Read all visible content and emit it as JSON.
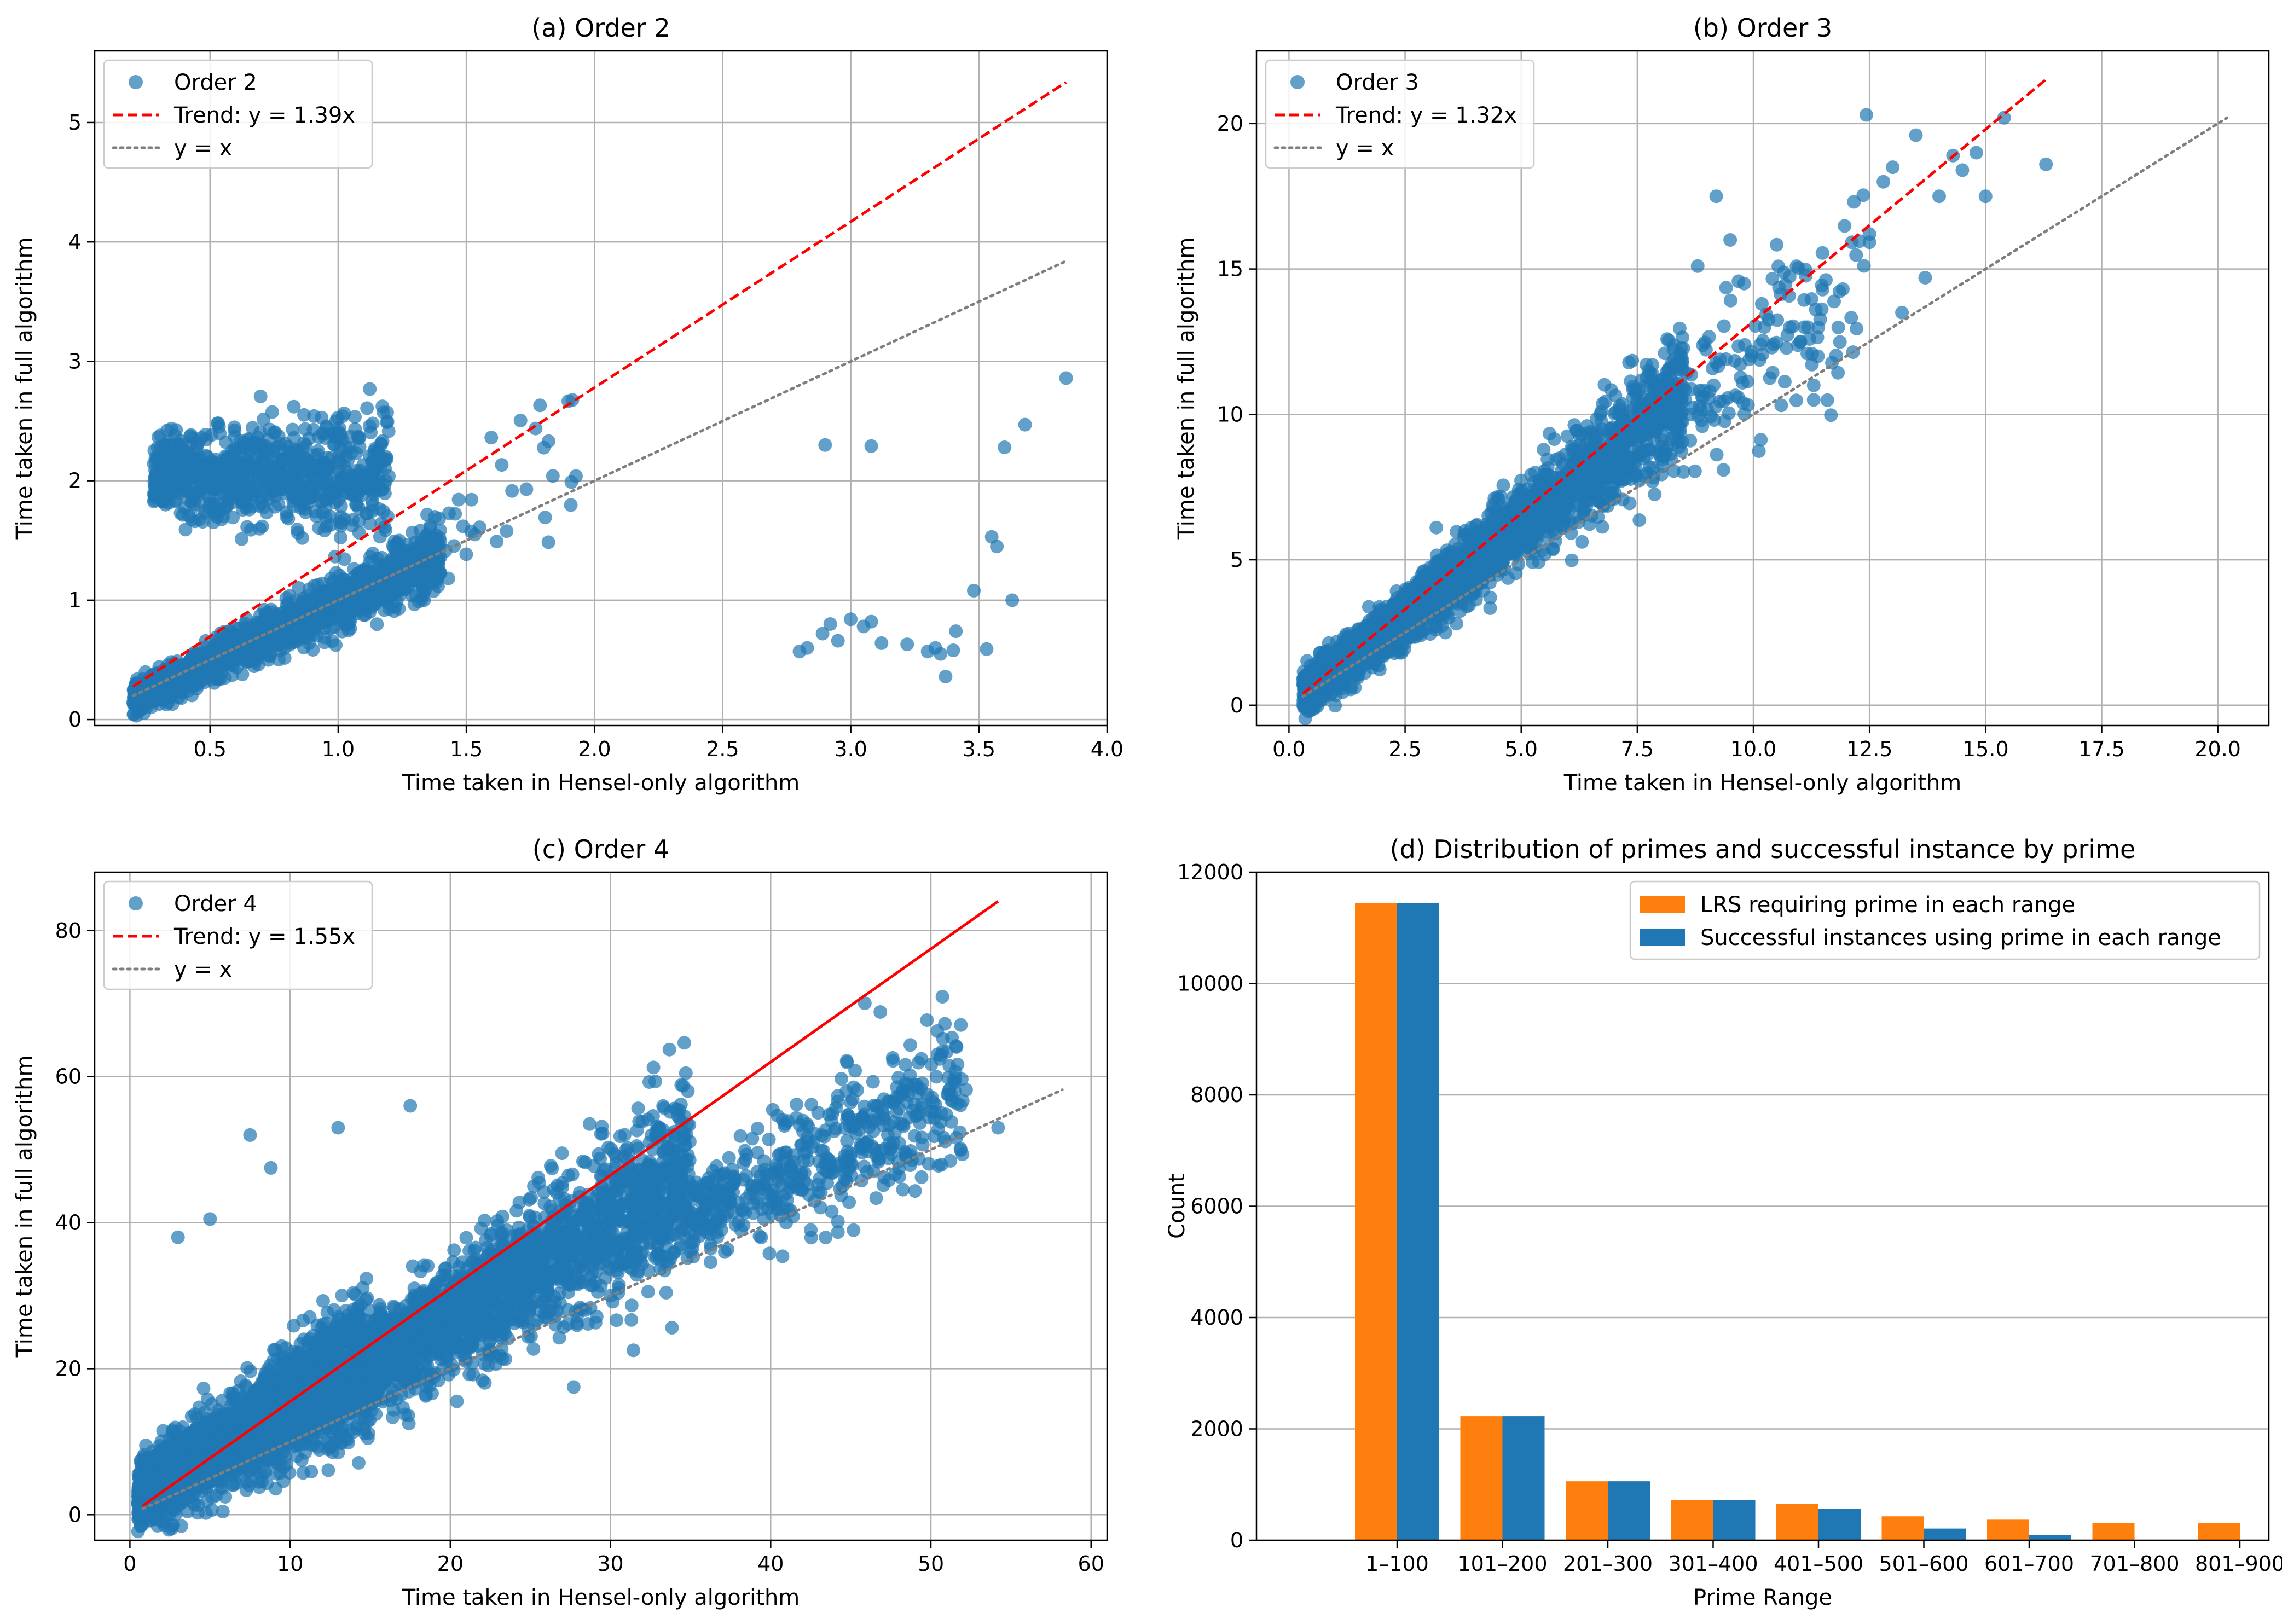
{
  "colors": {
    "blue": "#1f77b4",
    "orange": "#ff7f0e",
    "red": "#ff0000",
    "gray": "#7f7f7f",
    "grid": "#b0b0b0"
  },
  "chart_data": [
    {
      "id": "a",
      "type": "scatter",
      "title": "(a) Order 2",
      "xlabel": "Time taken in Hensel-only algorithm",
      "ylabel": "Time taken in full algorithm",
      "xlim": [
        0.05,
        4.0
      ],
      "ylim": [
        -0.05,
        5.6
      ],
      "xticks": [
        0.5,
        1.0,
        1.5,
        2.0,
        2.5,
        3.0,
        3.5,
        4.0
      ],
      "xticklabels": [
        "0.5",
        "1.0",
        "1.5",
        "2.0",
        "2.5",
        "3.0",
        "3.5",
        "4.0"
      ],
      "yticks": [
        0,
        1,
        2,
        3,
        4,
        5
      ],
      "yticklabels": [
        "0",
        "1",
        "2",
        "3",
        "4",
        "5"
      ],
      "grid": true,
      "legend": {
        "position": "top-left",
        "entries": [
          {
            "label": "Order 2",
            "style": "marker"
          },
          {
            "label": "Trend: y = 1.39x",
            "style": "dashed"
          },
          {
            "label": "y = x",
            "style": "dotted"
          }
        ]
      },
      "trend": {
        "slope": 1.39,
        "x_range": [
          0.2,
          3.84
        ],
        "style": "dashed"
      },
      "identity": {
        "x_range": [
          0.2,
          3.84
        ]
      },
      "clusters": [
        {
          "n": 1300,
          "x_range": [
            0.2,
            1.4
          ],
          "slope": 1.0,
          "offset": -0.02,
          "spread": 0.12
        },
        {
          "n": 800,
          "x_range": [
            0.28,
            1.2
          ],
          "slope": 0.0,
          "offset": 2.05,
          "spread": 0.24
        },
        {
          "n": 40,
          "x_range": [
            1.2,
            1.95
          ],
          "slope": 1.12,
          "offset": 0.0,
          "spread": 0.25
        }
      ],
      "points": [
        [
          2.8,
          0.57
        ],
        [
          2.83,
          0.6
        ],
        [
          2.89,
          0.72
        ],
        [
          2.92,
          0.8
        ],
        [
          2.95,
          0.66
        ],
        [
          3.0,
          0.84
        ],
        [
          3.05,
          0.78
        ],
        [
          3.08,
          0.82
        ],
        [
          3.12,
          0.64
        ],
        [
          3.22,
          0.63
        ],
        [
          3.3,
          0.57
        ],
        [
          3.33,
          0.6
        ],
        [
          3.35,
          0.55
        ],
        [
          3.37,
          0.36
        ],
        [
          3.4,
          0.58
        ],
        [
          3.41,
          0.74
        ],
        [
          3.48,
          1.08
        ],
        [
          3.53,
          0.59
        ],
        [
          3.55,
          1.53
        ],
        [
          3.57,
          1.45
        ],
        [
          3.63,
          1.0
        ],
        [
          2.9,
          2.3
        ],
        [
          3.08,
          2.29
        ],
        [
          3.6,
          2.28
        ],
        [
          3.68,
          2.47
        ],
        [
          3.84,
          2.86
        ]
      ]
    },
    {
      "id": "b",
      "type": "scatter",
      "title": "(b) Order 3",
      "xlabel": "Time taken in Hensel-only algorithm",
      "ylabel": "Time taken in full algorithm",
      "xlim": [
        -0.7,
        21.1
      ],
      "ylim": [
        -0.7,
        22.5
      ],
      "xticks": [
        0,
        2.5,
        5,
        7.5,
        10,
        12.5,
        15,
        17.5,
        20
      ],
      "xticklabels": [
        "0.0",
        "2.5",
        "5.0",
        "7.5",
        "10.0",
        "12.5",
        "15.0",
        "17.5",
        "20.0"
      ],
      "yticks": [
        0,
        5,
        10,
        15,
        20
      ],
      "yticklabels": [
        "0",
        "5",
        "10",
        "15",
        "20"
      ],
      "grid": true,
      "legend": {
        "position": "top-left",
        "entries": [
          {
            "label": "Order 3",
            "style": "marker"
          },
          {
            "label": "Trend: y = 1.32x",
            "style": "dashed"
          },
          {
            "label": "y = x",
            "style": "dotted"
          }
        ]
      },
      "trend": {
        "slope": 1.32,
        "x_range": [
          0.3,
          16.3
        ],
        "style": "dashed"
      },
      "identity": {
        "x_range": [
          0.3,
          20.2
        ]
      },
      "clusters": [
        {
          "n": 1600,
          "x_range": [
            0.3,
            4.5
          ],
          "slope": 1.2,
          "offset": 0.1,
          "spread": 0.55
        },
        {
          "n": 900,
          "x_range": [
            4.5,
            8.5
          ],
          "slope": 1.25,
          "offset": 0.0,
          "spread": 1.0
        },
        {
          "n": 140,
          "x_range": [
            8.5,
            12.5
          ],
          "slope": 1.2,
          "offset": 0.0,
          "spread": 1.6
        }
      ],
      "points": [
        [
          15.4,
          20.2
        ],
        [
          16.3,
          18.6
        ],
        [
          14.8,
          19.0
        ],
        [
          14.3,
          18.9
        ],
        [
          13.5,
          19.6
        ],
        [
          13.0,
          18.5
        ],
        [
          14.0,
          17.5
        ],
        [
          15.0,
          17.5
        ],
        [
          12.8,
          18.0
        ],
        [
          12.5,
          16.2
        ],
        [
          14.5,
          18.4
        ],
        [
          9.2,
          17.5
        ],
        [
          13.2,
          13.5
        ],
        [
          13.7,
          14.7
        ],
        [
          11.3,
          10.5
        ],
        [
          11.3,
          11.0
        ],
        [
          9.5,
          16.0
        ],
        [
          8.8,
          15.1
        ],
        [
          9.8,
          14.5
        ]
      ]
    },
    {
      "id": "c",
      "type": "scatter",
      "title": "(c) Order 4",
      "xlabel": "Time taken in Hensel-only algorithm",
      "ylabel": "Time taken in full algorithm",
      "xlim": [
        -2.2,
        61
      ],
      "ylim": [
        -3.5,
        88
      ],
      "xticks": [
        0,
        10,
        20,
        30,
        40,
        50,
        60
      ],
      "xticklabels": [
        "0",
        "10",
        "20",
        "30",
        "40",
        "50",
        "60"
      ],
      "yticks": [
        0,
        20,
        40,
        60,
        80
      ],
      "yticklabels": [
        "0",
        "20",
        "40",
        "60",
        "80"
      ],
      "grid": true,
      "legend": {
        "position": "top-left",
        "entries": [
          {
            "label": "Order 4",
            "style": "marker"
          },
          {
            "label": "Trend: y = 1.55x",
            "style": "dashed"
          },
          {
            "label": "y = x",
            "style": "dotted"
          }
        ]
      },
      "trend": {
        "slope": 1.55,
        "x_range": [
          0.8,
          54.2
        ],
        "style": "solid"
      },
      "identity": {
        "x_range": [
          0.8,
          58.2
        ]
      },
      "clusters": [
        {
          "n": 2600,
          "x_range": [
            0.5,
            15
          ],
          "slope": 1.3,
          "offset": 2.0,
          "spread": 3.8
        },
        {
          "n": 1900,
          "x_range": [
            15,
            35
          ],
          "slope": 1.3,
          "offset": 1.0,
          "spread": 5.0
        },
        {
          "n": 500,
          "x_range": [
            35,
            52
          ],
          "slope": 1.05,
          "offset": 4.0,
          "spread": 5.0
        }
      ],
      "points": [
        [
          54.2,
          53.0
        ],
        [
          51.5,
          58.0
        ],
        [
          52.2,
          58.2
        ],
        [
          7.5,
          52.0
        ],
        [
          13.0,
          53.0
        ],
        [
          17.5,
          56.0
        ],
        [
          8.8,
          47.5
        ],
        [
          5.0,
          40.5
        ],
        [
          3.0,
          38.0
        ],
        [
          42.5,
          39.0
        ],
        [
          30.0,
          30.0
        ],
        [
          22.0,
          22.0
        ]
      ]
    },
    {
      "id": "d",
      "type": "bar",
      "title": "(d) Distribution of primes and successful instance by prime",
      "xlabel": "Prime Range",
      "ylabel": "Count",
      "ylim": [
        0,
        12000
      ],
      "yticks": [
        0,
        2000,
        4000,
        6000,
        8000,
        10000,
        12000
      ],
      "yticklabels": [
        "0",
        "2000",
        "4000",
        "6000",
        "8000",
        "10000",
        "12000"
      ],
      "grid": "y",
      "categories": [
        "1–100",
        "101–200",
        "201–300",
        "301–400",
        "401–500",
        "501–600",
        "601–700",
        "701–800",
        "801–900"
      ],
      "series": [
        {
          "name": "LRS requiring prime in each range",
          "color": "#ff7f0e",
          "values": [
            11450,
            2230,
            1060,
            720,
            650,
            430,
            370,
            310,
            310
          ]
        },
        {
          "name": "Successful instances using prime in each range",
          "color": "#1f77b4",
          "values": [
            11450,
            2230,
            1060,
            720,
            570,
            210,
            90,
            5,
            2
          ]
        }
      ],
      "legend": {
        "position": "top-right"
      }
    }
  ]
}
